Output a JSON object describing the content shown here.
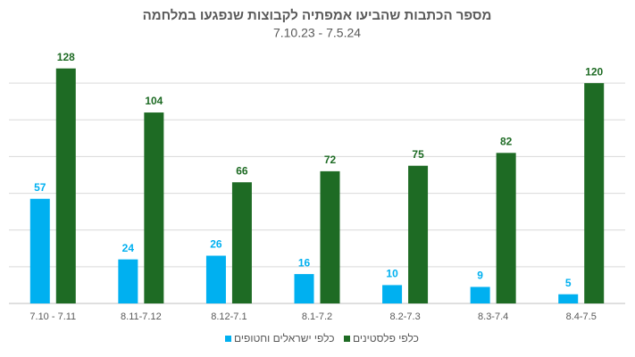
{
  "chart_data": {
    "type": "bar",
    "title": "מספר הכתבות שהביעו אמפתיה לקבוצות שנפגעו במלחמה",
    "subtitle": "7.10.23 - 7.5.24",
    "categories": [
      "7.10 - 7.11",
      "8.11-7.12",
      "8.12-7.1",
      "8.1-7.2",
      "8.2-7.3",
      "8.3-7.4",
      "8.4-7.5"
    ],
    "series": [
      {
        "name": "כלפי ישראלים וחטופים",
        "color": "#00b0f0",
        "values": [
          57,
          24,
          26,
          16,
          10,
          9,
          5
        ]
      },
      {
        "name": "כלפי פלסטינים",
        "color": "#1e6b24",
        "values": [
          128,
          104,
          66,
          72,
          75,
          82,
          120
        ]
      }
    ],
    "ylim": [
      0,
      140
    ],
    "yticks": [
      0,
      20,
      40,
      60,
      80,
      100,
      120
    ],
    "grid": true,
    "legend": "bottom"
  }
}
